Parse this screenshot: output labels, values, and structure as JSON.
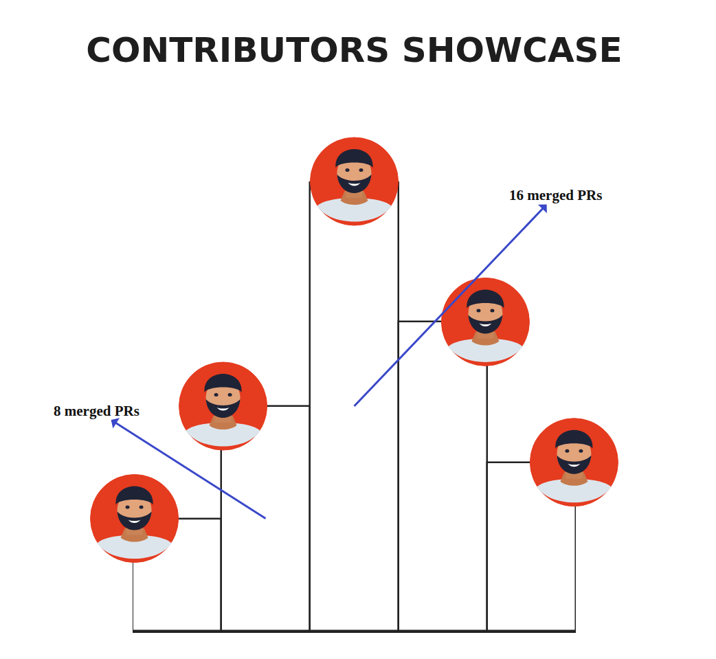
{
  "chart_data": {
    "type": "bar",
    "title": "CONTRIBUTORS SHOWCASE",
    "categories": [
      null,
      null,
      null,
      null,
      null
    ],
    "values": [
      4,
      8,
      16,
      11,
      6
    ],
    "color": "#ffffff",
    "ylim": [
      0,
      16
    ],
    "yticks": [],
    "tick_labels": false,
    "grid": false,
    "annotations": [
      {
        "text": "8 merged PRs",
        "x": 1
      },
      {
        "text": "16 merged PRs",
        "x": 2
      }
    ]
  }
}
